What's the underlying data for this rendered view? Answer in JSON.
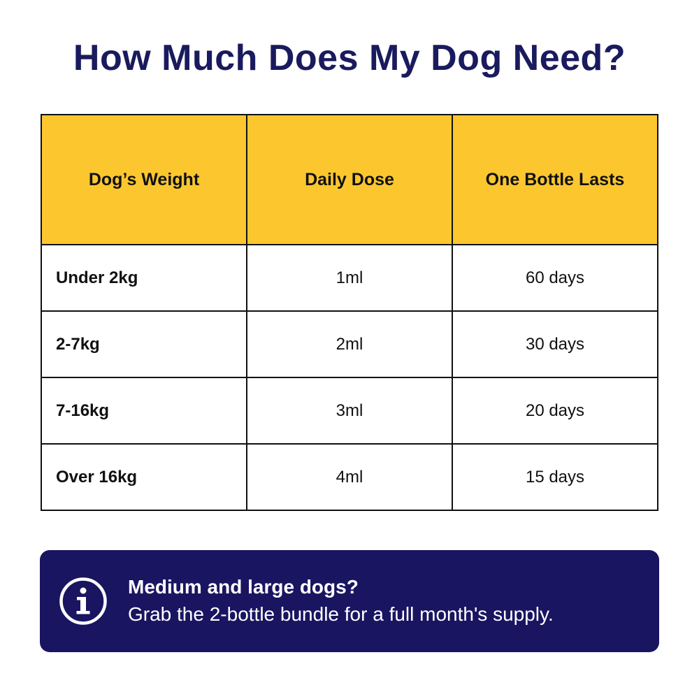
{
  "title": "How Much Does My Dog Need?",
  "table": {
    "headers": [
      "Dog’s Weight",
      "Daily Dose",
      "One Bottle Lasts"
    ],
    "rows": [
      {
        "weight": "Under 2kg",
        "dose": "1ml",
        "lasts": "60 days"
      },
      {
        "weight": "2-7kg",
        "dose": "2ml",
        "lasts": "30 days"
      },
      {
        "weight": "7-16kg",
        "dose": "3ml",
        "lasts": "20 days"
      },
      {
        "weight": "Over 16kg",
        "dose": "4ml",
        "lasts": "15 days"
      }
    ]
  },
  "info": {
    "icon": "info-icon",
    "heading": "Medium and large dogs?",
    "body": "Grab the 2-bottle bundle for a full month's supply."
  },
  "colors": {
    "title": "#1a1a5e",
    "header_bg": "#fcc72e",
    "info_bg": "#1a1560",
    "border": "#111111"
  }
}
